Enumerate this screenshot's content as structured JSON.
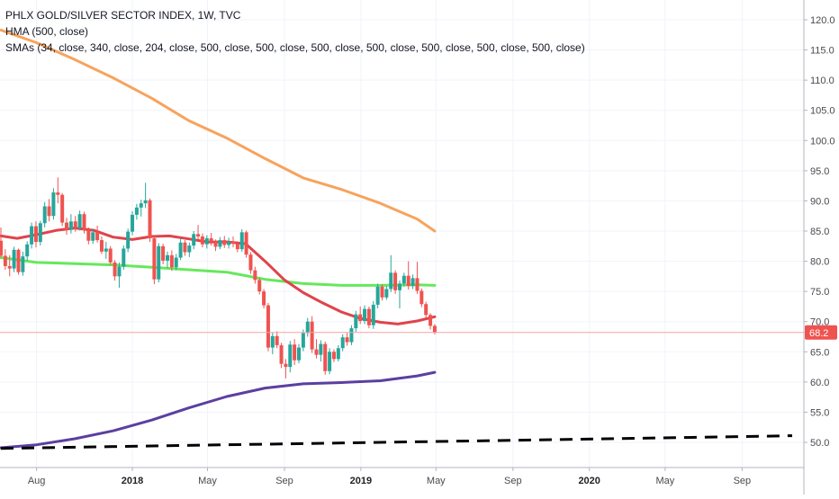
{
  "legend": {
    "title": "PHLX GOLD/SILVER SECTOR INDEX, 1W, TVC",
    "hma": "HMA (500, close)",
    "smas": "SMAs (34, close, 340, close, 204, close, 500, close, 500, close, 500, close, 500, close, 500, close, 500, close, 500, close)"
  },
  "colors": {
    "up": "#26a69a",
    "down": "#ef5350",
    "sma_red": "#e0434b",
    "sma_green": "#66e85c",
    "sma_orange": "#f7a35c",
    "sma_purple": "#5b3fa0",
    "hma_black": "#000000",
    "price_line": "#f4a3a3"
  },
  "chart_data": {
    "type": "line",
    "title": "PHLX GOLD/SILVER SECTOR INDEX, 1W, TVC",
    "ylim": [
      47,
      123
    ],
    "y_ticks": [
      120,
      115,
      110,
      105,
      100,
      95,
      90,
      85,
      80,
      75,
      70,
      65,
      60,
      55,
      50
    ],
    "y_tick_labels": [
      "120.0",
      "115.0",
      "110.0",
      "105.0",
      "100.0",
      "95.0",
      "90.0",
      "85.0",
      "80.0",
      "75.0",
      "70.0",
      "65.0",
      "60.0",
      "55.0",
      "50.0"
    ],
    "x_ticks": [
      {
        "label": "Aug",
        "date": "2017-08-01",
        "bold": false
      },
      {
        "label": "2018",
        "date": "2018-01-01",
        "bold": true
      },
      {
        "label": "May",
        "date": "2018-05-01",
        "bold": false
      },
      {
        "label": "Sep",
        "date": "2018-09-01",
        "bold": false
      },
      {
        "label": "2019",
        "date": "2019-01-01",
        "bold": true
      },
      {
        "label": "May",
        "date": "2019-05-01",
        "bold": false
      },
      {
        "label": "Sep",
        "date": "2019-09-01",
        "bold": false
      },
      {
        "label": "2020",
        "date": "2020-01-01",
        "bold": true
      },
      {
        "label": "May",
        "date": "2020-05-01",
        "bold": false
      },
      {
        "label": "Sep",
        "date": "2020-09-01",
        "bold": false
      }
    ],
    "last_price": 68.2,
    "last_price_label": "68.2",
    "candles": [
      {
        "date": "2017-06-05",
        "o": 83.4,
        "h": 85.6,
        "l": 80.6,
        "c": 80.9
      },
      {
        "date": "2017-06-12",
        "o": 80.9,
        "h": 82.0,
        "l": 78.6,
        "c": 79.2
      },
      {
        "date": "2017-06-19",
        "o": 79.2,
        "h": 81.0,
        "l": 77.5,
        "c": 78.8
      },
      {
        "date": "2017-06-26",
        "o": 78.8,
        "h": 82.4,
        "l": 78.2,
        "c": 81.9
      },
      {
        "date": "2017-07-03",
        "o": 81.9,
        "h": 82.1,
        "l": 77.8,
        "c": 78.2
      },
      {
        "date": "2017-07-10",
        "o": 78.2,
        "h": 81.6,
        "l": 77.6,
        "c": 80.8
      },
      {
        "date": "2017-07-17",
        "o": 80.8,
        "h": 83.3,
        "l": 80.1,
        "c": 82.8
      },
      {
        "date": "2017-07-24",
        "o": 82.8,
        "h": 86.4,
        "l": 82.1,
        "c": 85.8
      },
      {
        "date": "2017-07-31",
        "o": 85.8,
        "h": 86.6,
        "l": 82.3,
        "c": 83.2
      },
      {
        "date": "2017-08-07",
        "o": 83.2,
        "h": 86.7,
        "l": 82.6,
        "c": 86.3
      },
      {
        "date": "2017-08-14",
        "o": 86.3,
        "h": 89.8,
        "l": 85.6,
        "c": 89.1
      },
      {
        "date": "2017-08-21",
        "o": 89.1,
        "h": 90.3,
        "l": 86.6,
        "c": 87.5
      },
      {
        "date": "2017-08-28",
        "o": 87.5,
        "h": 92.1,
        "l": 86.9,
        "c": 91.4
      },
      {
        "date": "2017-09-04",
        "o": 91.4,
        "h": 93.9,
        "l": 89.6,
        "c": 91.0
      },
      {
        "date": "2017-09-11",
        "o": 91.0,
        "h": 91.3,
        "l": 85.8,
        "c": 86.4
      },
      {
        "date": "2017-09-18",
        "o": 86.4,
        "h": 87.2,
        "l": 84.4,
        "c": 85.2
      },
      {
        "date": "2017-09-25",
        "o": 85.2,
        "h": 87.8,
        "l": 84.6,
        "c": 86.6
      },
      {
        "date": "2017-10-02",
        "o": 86.6,
        "h": 87.5,
        "l": 84.9,
        "c": 85.5
      },
      {
        "date": "2017-10-09",
        "o": 85.5,
        "h": 88.4,
        "l": 85.1,
        "c": 87.8
      },
      {
        "date": "2017-10-16",
        "o": 87.8,
        "h": 88.2,
        "l": 84.6,
        "c": 85.2
      },
      {
        "date": "2017-10-23",
        "o": 85.2,
        "h": 85.6,
        "l": 82.8,
        "c": 83.4
      },
      {
        "date": "2017-10-30",
        "o": 83.4,
        "h": 85.4,
        "l": 82.9,
        "c": 84.8
      },
      {
        "date": "2017-11-06",
        "o": 84.8,
        "h": 85.9,
        "l": 83.1,
        "c": 83.5
      },
      {
        "date": "2017-11-13",
        "o": 83.5,
        "h": 84.1,
        "l": 81.2,
        "c": 81.6
      },
      {
        "date": "2017-11-20",
        "o": 81.6,
        "h": 83.2,
        "l": 80.4,
        "c": 82.1
      },
      {
        "date": "2017-11-27",
        "o": 82.1,
        "h": 82.5,
        "l": 79.4,
        "c": 79.8
      },
      {
        "date": "2017-12-04",
        "o": 79.8,
        "h": 80.2,
        "l": 76.8,
        "c": 77.5
      },
      {
        "date": "2017-12-11",
        "o": 77.5,
        "h": 79.8,
        "l": 75.6,
        "c": 79.1
      },
      {
        "date": "2017-12-18",
        "o": 79.1,
        "h": 82.6,
        "l": 78.6,
        "c": 82.1
      },
      {
        "date": "2017-12-25",
        "o": 82.1,
        "h": 85.4,
        "l": 81.5,
        "c": 84.9
      },
      {
        "date": "2018-01-01",
        "o": 84.9,
        "h": 88.3,
        "l": 84.3,
        "c": 87.7
      },
      {
        "date": "2018-01-08",
        "o": 87.7,
        "h": 89.5,
        "l": 86.9,
        "c": 88.9
      },
      {
        "date": "2018-01-15",
        "o": 88.9,
        "h": 90.2,
        "l": 87.4,
        "c": 89.6
      },
      {
        "date": "2018-01-22",
        "o": 89.6,
        "h": 93.0,
        "l": 88.8,
        "c": 90.1
      },
      {
        "date": "2018-01-29",
        "o": 90.1,
        "h": 90.4,
        "l": 83.2,
        "c": 83.8
      },
      {
        "date": "2018-02-05",
        "o": 83.8,
        "h": 84.1,
        "l": 76.2,
        "c": 77.0
      },
      {
        "date": "2018-02-12",
        "o": 77.0,
        "h": 83.0,
        "l": 76.5,
        "c": 82.5
      },
      {
        "date": "2018-02-19",
        "o": 82.5,
        "h": 82.9,
        "l": 79.5,
        "c": 80.1
      },
      {
        "date": "2018-02-26",
        "o": 80.1,
        "h": 81.6,
        "l": 78.9,
        "c": 81.0
      },
      {
        "date": "2018-03-05",
        "o": 81.0,
        "h": 81.8,
        "l": 78.4,
        "c": 79.0
      },
      {
        "date": "2018-03-12",
        "o": 79.0,
        "h": 81.2,
        "l": 78.5,
        "c": 80.6
      },
      {
        "date": "2018-03-19",
        "o": 80.6,
        "h": 83.8,
        "l": 80.2,
        "c": 83.1
      },
      {
        "date": "2018-03-26",
        "o": 83.1,
        "h": 83.5,
        "l": 80.9,
        "c": 81.5
      },
      {
        "date": "2018-04-02",
        "o": 81.5,
        "h": 83.1,
        "l": 80.7,
        "c": 82.6
      },
      {
        "date": "2018-04-09",
        "o": 82.6,
        "h": 85.0,
        "l": 82.0,
        "c": 84.5
      },
      {
        "date": "2018-04-16",
        "o": 84.5,
        "h": 86.0,
        "l": 83.6,
        "c": 84.1
      },
      {
        "date": "2018-04-23",
        "o": 84.1,
        "h": 84.6,
        "l": 82.3,
        "c": 82.8
      },
      {
        "date": "2018-04-30",
        "o": 82.8,
        "h": 84.3,
        "l": 82.1,
        "c": 83.8
      },
      {
        "date": "2018-05-07",
        "o": 83.8,
        "h": 84.7,
        "l": 82.6,
        "c": 83.3
      },
      {
        "date": "2018-05-14",
        "o": 83.3,
        "h": 83.6,
        "l": 81.7,
        "c": 82.4
      },
      {
        "date": "2018-05-21",
        "o": 82.4,
        "h": 84.0,
        "l": 82.0,
        "c": 83.5
      },
      {
        "date": "2018-05-28",
        "o": 83.5,
        "h": 84.2,
        "l": 82.2,
        "c": 82.7
      },
      {
        "date": "2018-06-04",
        "o": 82.7,
        "h": 83.9,
        "l": 82.1,
        "c": 83.2
      },
      {
        "date": "2018-06-11",
        "o": 83.2,
        "h": 84.1,
        "l": 82.3,
        "c": 82.9
      },
      {
        "date": "2018-06-18",
        "o": 82.9,
        "h": 83.3,
        "l": 81.5,
        "c": 82.0
      },
      {
        "date": "2018-06-25",
        "o": 82.0,
        "h": 85.3,
        "l": 81.6,
        "c": 84.8
      },
      {
        "date": "2018-07-02",
        "o": 84.8,
        "h": 85.1,
        "l": 80.6,
        "c": 81.1
      },
      {
        "date": "2018-07-09",
        "o": 81.1,
        "h": 81.5,
        "l": 77.9,
        "c": 78.5
      },
      {
        "date": "2018-07-16",
        "o": 78.5,
        "h": 79.1,
        "l": 76.3,
        "c": 76.9
      },
      {
        "date": "2018-07-23",
        "o": 76.9,
        "h": 77.3,
        "l": 74.5,
        "c": 75.0
      },
      {
        "date": "2018-07-30",
        "o": 75.0,
        "h": 75.4,
        "l": 72.2,
        "c": 72.7
      },
      {
        "date": "2018-08-06",
        "o": 72.7,
        "h": 73.1,
        "l": 65.1,
        "c": 65.7
      },
      {
        "date": "2018-08-13",
        "o": 65.7,
        "h": 68.2,
        "l": 64.6,
        "c": 67.6
      },
      {
        "date": "2018-08-20",
        "o": 67.6,
        "h": 68.4,
        "l": 65.6,
        "c": 66.1
      },
      {
        "date": "2018-08-27",
        "o": 66.1,
        "h": 66.5,
        "l": 62.3,
        "c": 63.0
      },
      {
        "date": "2018-09-03",
        "o": 63.0,
        "h": 63.8,
        "l": 60.6,
        "c": 62.5
      },
      {
        "date": "2018-09-10",
        "o": 62.5,
        "h": 66.8,
        "l": 61.6,
        "c": 66.2
      },
      {
        "date": "2018-09-17",
        "o": 66.2,
        "h": 67.1,
        "l": 62.8,
        "c": 63.6
      },
      {
        "date": "2018-09-24",
        "o": 63.6,
        "h": 66.3,
        "l": 63.1,
        "c": 65.7
      },
      {
        "date": "2018-10-01",
        "o": 65.7,
        "h": 68.7,
        "l": 65.1,
        "c": 68.1
      },
      {
        "date": "2018-10-08",
        "o": 68.1,
        "h": 70.6,
        "l": 67.5,
        "c": 70.0
      },
      {
        "date": "2018-10-15",
        "o": 70.0,
        "h": 70.9,
        "l": 64.8,
        "c": 65.4
      },
      {
        "date": "2018-10-22",
        "o": 65.4,
        "h": 67.1,
        "l": 63.9,
        "c": 64.5
      },
      {
        "date": "2018-10-29",
        "o": 64.5,
        "h": 66.9,
        "l": 63.4,
        "c": 66.3
      },
      {
        "date": "2018-11-05",
        "o": 66.3,
        "h": 66.7,
        "l": 61.2,
        "c": 61.8
      },
      {
        "date": "2018-11-12",
        "o": 61.8,
        "h": 65.6,
        "l": 61.3,
        "c": 65.0
      },
      {
        "date": "2018-11-19",
        "o": 65.0,
        "h": 65.4,
        "l": 63.3,
        "c": 63.8
      },
      {
        "date": "2018-11-26",
        "o": 63.8,
        "h": 66.1,
        "l": 63.4,
        "c": 65.6
      },
      {
        "date": "2018-12-03",
        "o": 65.6,
        "h": 67.9,
        "l": 65.1,
        "c": 67.4
      },
      {
        "date": "2018-12-10",
        "o": 67.4,
        "h": 68.1,
        "l": 66.0,
        "c": 66.6
      },
      {
        "date": "2018-12-17",
        "o": 66.6,
        "h": 69.4,
        "l": 66.1,
        "c": 68.9
      },
      {
        "date": "2018-12-24",
        "o": 68.9,
        "h": 71.8,
        "l": 68.3,
        "c": 71.2
      },
      {
        "date": "2018-12-31",
        "o": 71.2,
        "h": 72.5,
        "l": 69.6,
        "c": 70.1
      },
      {
        "date": "2019-01-07",
        "o": 70.1,
        "h": 72.7,
        "l": 69.6,
        "c": 72.1
      },
      {
        "date": "2019-01-14",
        "o": 72.1,
        "h": 72.5,
        "l": 68.9,
        "c": 69.4
      },
      {
        "date": "2019-01-21",
        "o": 69.4,
        "h": 73.4,
        "l": 68.8,
        "c": 72.8
      },
      {
        "date": "2019-01-28",
        "o": 72.8,
        "h": 76.3,
        "l": 72.2,
        "c": 75.8
      },
      {
        "date": "2019-02-04",
        "o": 75.8,
        "h": 76.2,
        "l": 73.5,
        "c": 74.0
      },
      {
        "date": "2019-02-11",
        "o": 74.0,
        "h": 75.9,
        "l": 73.6,
        "c": 75.4
      },
      {
        "date": "2019-02-18",
        "o": 75.4,
        "h": 81.0,
        "l": 74.9,
        "c": 78.1
      },
      {
        "date": "2019-02-25",
        "o": 78.1,
        "h": 78.5,
        "l": 74.6,
        "c": 75.2
      },
      {
        "date": "2019-03-04",
        "o": 75.2,
        "h": 76.8,
        "l": 72.2,
        "c": 76.3
      },
      {
        "date": "2019-03-11",
        "o": 76.3,
        "h": 78.1,
        "l": 75.8,
        "c": 77.6
      },
      {
        "date": "2019-03-18",
        "o": 77.6,
        "h": 80.0,
        "l": 75.3,
        "c": 75.9
      },
      {
        "date": "2019-03-25",
        "o": 75.9,
        "h": 77.8,
        "l": 75.4,
        "c": 77.2
      },
      {
        "date": "2019-04-01",
        "o": 77.2,
        "h": 79.9,
        "l": 74.6,
        "c": 75.1
      },
      {
        "date": "2019-04-08",
        "o": 75.1,
        "h": 75.5,
        "l": 72.4,
        "c": 72.9
      },
      {
        "date": "2019-04-15",
        "o": 72.9,
        "h": 73.3,
        "l": 70.6,
        "c": 71.1
      },
      {
        "date": "2019-04-22",
        "o": 71.1,
        "h": 71.4,
        "l": 68.7,
        "c": 69.3
      },
      {
        "date": "2019-04-29",
        "o": 69.3,
        "h": 69.6,
        "l": 67.9,
        "c": 68.2
      }
    ],
    "series": [
      {
        "color_key": "sma_orange",
        "dash": false,
        "width": 3,
        "points": [
          [
            "2017-06-05",
            118.3
          ],
          [
            "2017-08-01",
            116.2
          ],
          [
            "2017-10-01",
            113.4
          ],
          [
            "2017-12-01",
            110.4
          ],
          [
            "2018-02-01",
            107.0
          ],
          [
            "2018-04-01",
            103.3
          ],
          [
            "2018-06-01",
            100.4
          ],
          [
            "2018-08-01",
            97.0
          ],
          [
            "2018-10-01",
            93.8
          ],
          [
            "2018-12-01",
            91.9
          ],
          [
            "2019-02-01",
            89.6
          ],
          [
            "2019-04-01",
            87.0
          ],
          [
            "2019-04-29",
            85.0
          ]
        ]
      },
      {
        "color_key": "sma_green",
        "dash": false,
        "width": 3,
        "points": [
          [
            "2017-06-05",
            80.6
          ],
          [
            "2017-08-01",
            79.8
          ],
          [
            "2017-10-01",
            79.6
          ],
          [
            "2017-12-01",
            79.4
          ],
          [
            "2018-02-01",
            79.0
          ],
          [
            "2018-04-01",
            78.6
          ],
          [
            "2018-06-01",
            78.2
          ],
          [
            "2018-08-01",
            77.0
          ],
          [
            "2018-10-01",
            76.3
          ],
          [
            "2018-12-01",
            76.0
          ],
          [
            "2019-02-01",
            76.0
          ],
          [
            "2019-04-01",
            76.1
          ],
          [
            "2019-04-29",
            76.0
          ]
        ]
      },
      {
        "color_key": "sma_red",
        "dash": false,
        "width": 3,
        "points": [
          [
            "2017-06-05",
            84.2
          ],
          [
            "2017-07-01",
            83.8
          ],
          [
            "2017-08-01",
            84.4
          ],
          [
            "2017-09-01",
            85.1
          ],
          [
            "2017-10-01",
            85.5
          ],
          [
            "2017-11-01",
            85.1
          ],
          [
            "2017-12-01",
            84.0
          ],
          [
            "2018-01-01",
            83.6
          ],
          [
            "2018-02-01",
            84.1
          ],
          [
            "2018-03-01",
            84.2
          ],
          [
            "2018-04-01",
            83.7
          ],
          [
            "2018-05-01",
            83.2
          ],
          [
            "2018-06-01",
            83.2
          ],
          [
            "2018-07-01",
            82.9
          ],
          [
            "2018-08-01",
            80.0
          ],
          [
            "2018-09-01",
            76.9
          ],
          [
            "2018-10-01",
            74.8
          ],
          [
            "2018-11-01",
            73.1
          ],
          [
            "2018-12-01",
            71.6
          ],
          [
            "2019-01-01",
            70.5
          ],
          [
            "2019-02-01",
            69.9
          ],
          [
            "2019-03-01",
            69.6
          ],
          [
            "2019-04-01",
            70.1
          ],
          [
            "2019-04-29",
            70.8
          ]
        ]
      },
      {
        "color_key": "sma_purple",
        "dash": false,
        "width": 3,
        "points": [
          [
            "2017-06-05",
            49.1
          ],
          [
            "2017-08-01",
            49.6
          ],
          [
            "2017-10-01",
            50.6
          ],
          [
            "2017-12-01",
            51.9
          ],
          [
            "2018-02-01",
            53.7
          ],
          [
            "2018-04-01",
            55.7
          ],
          [
            "2018-06-01",
            57.6
          ],
          [
            "2018-08-01",
            59.0
          ],
          [
            "2018-10-01",
            59.7
          ],
          [
            "2018-12-01",
            59.9
          ],
          [
            "2019-02-01",
            60.2
          ],
          [
            "2019-04-01",
            61.0
          ],
          [
            "2019-04-29",
            61.6
          ]
        ]
      },
      {
        "color_key": "hma_black",
        "dash": true,
        "width": 3,
        "points": [
          [
            "2017-06-05",
            49.0
          ],
          [
            "2018-06-01",
            49.6
          ],
          [
            "2019-06-01",
            50.2
          ],
          [
            "2020-06-01",
            50.8
          ],
          [
            "2020-11-20",
            51.1
          ]
        ]
      }
    ]
  }
}
